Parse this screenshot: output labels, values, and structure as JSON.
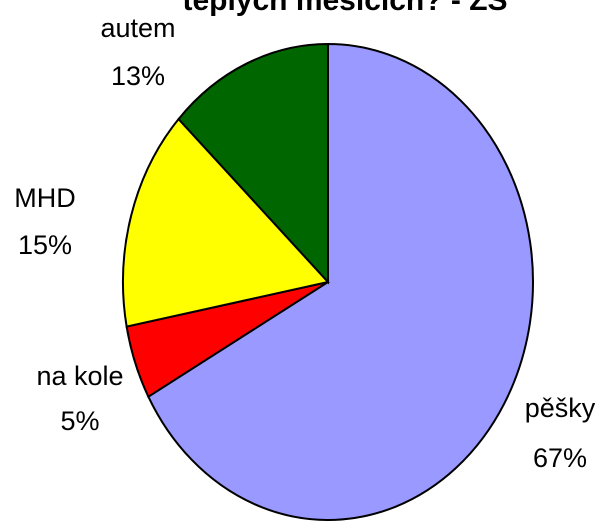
{
  "chart_data": {
    "type": "pie",
    "title": "teplých měsících? - ZŠ",
    "categories": [
      "pěšky",
      "na kole",
      "MHD",
      "autem"
    ],
    "values": [
      67,
      5,
      15,
      13
    ],
    "value_labels": [
      "67%",
      "5%",
      "15%",
      "13%"
    ],
    "colors": [
      "#9999ff",
      "#ff0000",
      "#ffff00",
      "#006600"
    ]
  }
}
